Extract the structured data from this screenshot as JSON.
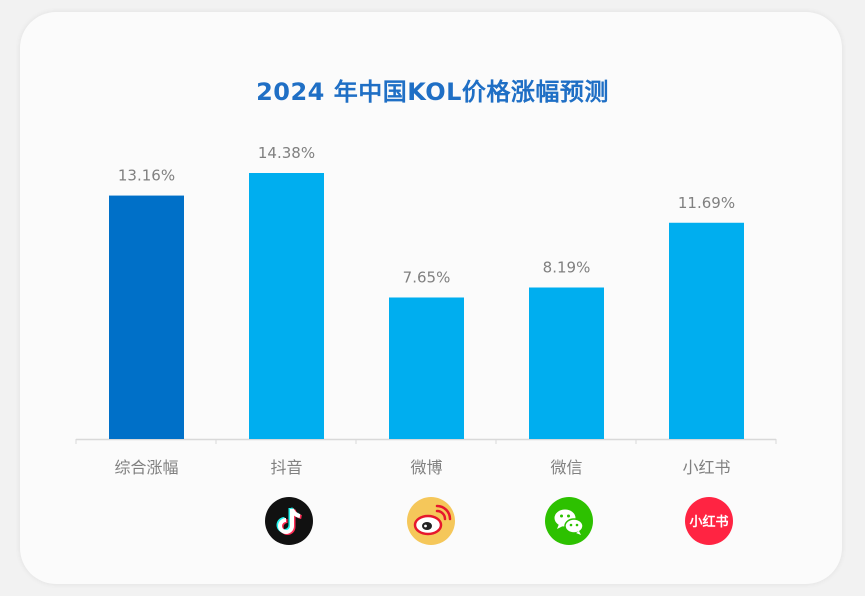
{
  "chart_data": {
    "type": "bar",
    "title": "2024 年中国KOL价格涨幅预测",
    "categories": [
      "综合涨幅",
      "抖音",
      "微博",
      "微信",
      "小红书"
    ],
    "values": [
      13.16,
      14.38,
      7.65,
      8.19,
      11.69
    ],
    "value_labels": [
      "13.16%",
      "14.38%",
      "7.65%",
      "8.19%",
      "11.69%"
    ],
    "unit": "%",
    "ylim": [
      0,
      20
    ],
    "grid": false,
    "colors": {
      "highlight": "#0070c8",
      "default": "#00aeef",
      "label": "#808080",
      "title": "#1f6fc5"
    },
    "icons": [
      null,
      "douyin-icon",
      "weibo-icon",
      "wechat-icon",
      "xiaohongshu-icon"
    ],
    "xhs_logo_text": "小红书"
  }
}
